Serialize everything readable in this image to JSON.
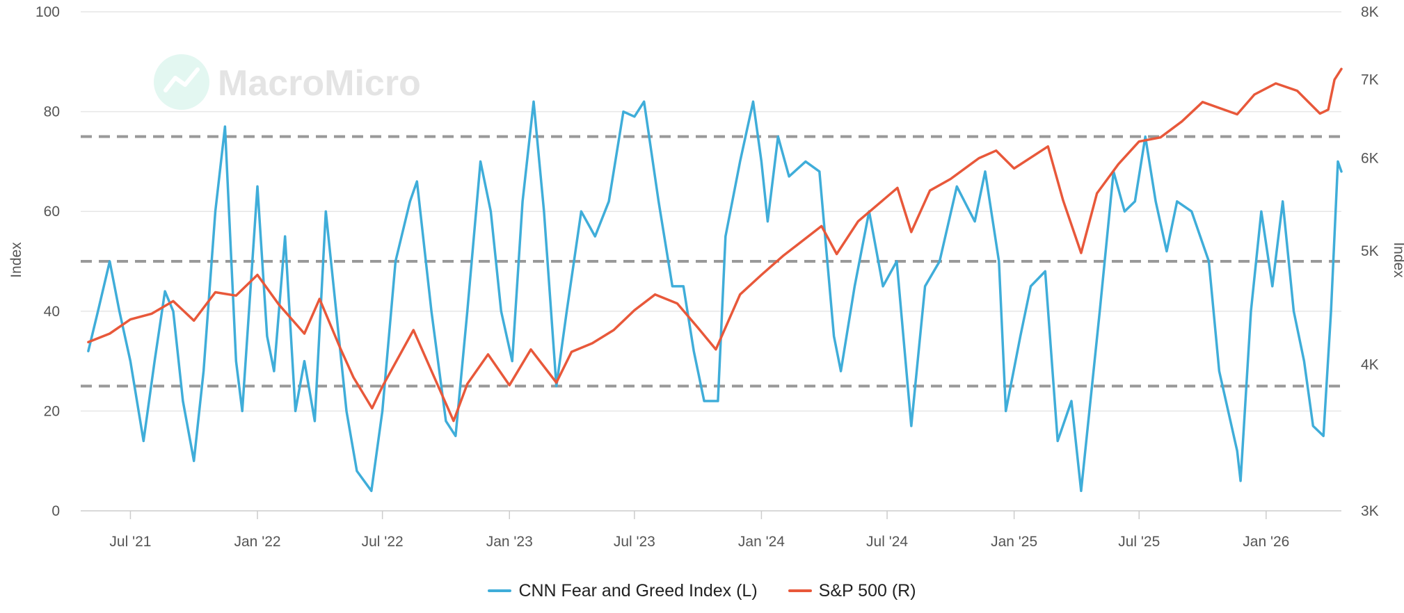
{
  "watermark": "MacroMicro",
  "chart_data": {
    "type": "line",
    "x_range": [
      "2021-04-20",
      "2026-04-20"
    ],
    "x_ticks": [
      {
        "date": "2021-07-01",
        "label": "Jul '21"
      },
      {
        "date": "2022-01-01",
        "label": "Jan '22"
      },
      {
        "date": "2022-07-01",
        "label": "Jul '22"
      },
      {
        "date": "2023-01-01",
        "label": "Jan '23"
      },
      {
        "date": "2023-07-01",
        "label": "Jul '23"
      },
      {
        "date": "2024-01-01",
        "label": "Jan '24"
      },
      {
        "date": "2024-07-01",
        "label": "Jul '24"
      },
      {
        "date": "2025-01-01",
        "label": "Jan '25"
      },
      {
        "date": "2025-07-01",
        "label": "Jul '25"
      },
      {
        "date": "2026-01-01",
        "label": "Jan '26"
      }
    ],
    "y_left": {
      "label": "Index",
      "ylim": [
        0,
        100
      ],
      "ticks": [
        {
          "v": 0,
          "label": "0"
        },
        {
          "v": 20,
          "label": "20"
        },
        {
          "v": 40,
          "label": "40"
        },
        {
          "v": 60,
          "label": "60"
        },
        {
          "v": 80,
          "label": "80"
        },
        {
          "v": 100,
          "label": "100"
        }
      ]
    },
    "y_right": {
      "label": "Index",
      "scale": "log",
      "ylim": [
        3000,
        8000
      ],
      "ticks": [
        {
          "v": 3000,
          "label": "3K"
        },
        {
          "v": 4000,
          "label": "4K"
        },
        {
          "v": 5000,
          "label": "5K"
        },
        {
          "v": 6000,
          "label": "6K"
        },
        {
          "v": 7000,
          "label": "7K"
        },
        {
          "v": 8000,
          "label": "8K"
        }
      ]
    },
    "reference_lines_left": [
      75,
      50,
      25
    ],
    "grid": true,
    "legend_position": "bottom-center",
    "series": [
      {
        "name": "CNN Fear and Greed Index (L)",
        "axis": "left",
        "color": "#3fadd9",
        "points": [
          [
            "2021-05-01",
            32
          ],
          [
            "2021-05-15",
            40
          ],
          [
            "2021-06-01",
            50
          ],
          [
            "2021-06-15",
            40
          ],
          [
            "2021-07-01",
            30
          ],
          [
            "2021-07-20",
            14
          ],
          [
            "2021-08-05",
            30
          ],
          [
            "2021-08-20",
            44
          ],
          [
            "2021-09-01",
            40
          ],
          [
            "2021-09-15",
            22
          ],
          [
            "2021-10-01",
            10
          ],
          [
            "2021-10-15",
            28
          ],
          [
            "2021-11-01",
            60
          ],
          [
            "2021-11-15",
            77
          ],
          [
            "2021-12-01",
            30
          ],
          [
            "2021-12-10",
            20
          ],
          [
            "2022-01-01",
            65
          ],
          [
            "2022-01-15",
            35
          ],
          [
            "2022-01-25",
            28
          ],
          [
            "2022-02-10",
            55
          ],
          [
            "2022-02-25",
            20
          ],
          [
            "2022-03-10",
            30
          ],
          [
            "2022-03-25",
            18
          ],
          [
            "2022-04-10",
            60
          ],
          [
            "2022-04-25",
            40
          ],
          [
            "2022-05-10",
            20
          ],
          [
            "2022-05-25",
            8
          ],
          [
            "2022-06-15",
            4
          ],
          [
            "2022-07-01",
            20
          ],
          [
            "2022-07-20",
            50
          ],
          [
            "2022-08-10",
            62
          ],
          [
            "2022-08-20",
            66
          ],
          [
            "2022-09-10",
            40
          ],
          [
            "2022-10-01",
            18
          ],
          [
            "2022-10-15",
            15
          ],
          [
            "2022-11-01",
            40
          ],
          [
            "2022-11-20",
            70
          ],
          [
            "2022-12-05",
            60
          ],
          [
            "2022-12-20",
            40
          ],
          [
            "2023-01-05",
            30
          ],
          [
            "2023-01-20",
            62
          ],
          [
            "2023-02-05",
            82
          ],
          [
            "2023-02-20",
            60
          ],
          [
            "2023-03-10",
            25
          ],
          [
            "2023-03-25",
            40
          ],
          [
            "2023-04-15",
            60
          ],
          [
            "2023-05-05",
            55
          ],
          [
            "2023-05-25",
            62
          ],
          [
            "2023-06-15",
            80
          ],
          [
            "2023-07-01",
            79
          ],
          [
            "2023-07-15",
            82
          ],
          [
            "2023-08-05",
            62
          ],
          [
            "2023-08-25",
            45
          ],
          [
            "2023-09-10",
            45
          ],
          [
            "2023-09-25",
            32
          ],
          [
            "2023-10-10",
            22
          ],
          [
            "2023-10-30",
            22
          ],
          [
            "2023-11-10",
            55
          ],
          [
            "2023-12-01",
            70
          ],
          [
            "2023-12-20",
            82
          ],
          [
            "2024-01-01",
            70
          ],
          [
            "2024-01-10",
            58
          ],
          [
            "2024-01-25",
            75
          ],
          [
            "2024-02-10",
            67
          ],
          [
            "2024-03-05",
            70
          ],
          [
            "2024-03-25",
            68
          ],
          [
            "2024-04-15",
            35
          ],
          [
            "2024-04-25",
            28
          ],
          [
            "2024-05-15",
            45
          ],
          [
            "2024-06-05",
            60
          ],
          [
            "2024-06-25",
            45
          ],
          [
            "2024-07-15",
            50
          ],
          [
            "2024-08-05",
            17
          ],
          [
            "2024-08-25",
            45
          ],
          [
            "2024-09-15",
            50
          ],
          [
            "2024-10-10",
            65
          ],
          [
            "2024-11-05",
            58
          ],
          [
            "2024-11-20",
            68
          ],
          [
            "2024-12-10",
            50
          ],
          [
            "2024-12-20",
            20
          ],
          [
            "2025-01-10",
            35
          ],
          [
            "2025-01-25",
            45
          ],
          [
            "2025-02-15",
            48
          ],
          [
            "2025-03-05",
            14
          ],
          [
            "2025-03-25",
            22
          ],
          [
            "2025-04-08",
            4
          ],
          [
            "2025-04-20",
            20
          ],
          [
            "2025-05-05",
            40
          ],
          [
            "2025-05-25",
            68
          ],
          [
            "2025-06-10",
            60
          ],
          [
            "2025-06-25",
            62
          ],
          [
            "2025-07-10",
            75
          ],
          [
            "2025-07-25",
            62
          ],
          [
            "2025-08-10",
            52
          ],
          [
            "2025-08-25",
            62
          ],
          [
            "2025-09-15",
            60
          ],
          [
            "2025-10-10",
            50
          ],
          [
            "2025-10-25",
            28
          ],
          [
            "2025-11-20",
            12
          ],
          [
            "2025-11-25",
            6
          ],
          [
            "2025-12-10",
            40
          ],
          [
            "2025-12-25",
            60
          ],
          [
            "2026-01-10",
            45
          ],
          [
            "2026-01-25",
            62
          ],
          [
            "2026-02-10",
            40
          ],
          [
            "2026-02-25",
            30
          ],
          [
            "2026-03-10",
            17
          ],
          [
            "2026-03-25",
            15
          ],
          [
            "2026-04-05",
            40
          ],
          [
            "2026-04-15",
            70
          ],
          [
            "2026-04-20",
            68
          ]
        ]
      },
      {
        "name": "S&P 500 (R)",
        "axis": "right",
        "color": "#e8583a",
        "points": [
          [
            "2021-05-01",
            4180
          ],
          [
            "2021-06-01",
            4250
          ],
          [
            "2021-07-01",
            4370
          ],
          [
            "2021-08-01",
            4420
          ],
          [
            "2021-09-01",
            4530
          ],
          [
            "2021-10-01",
            4360
          ],
          [
            "2021-11-01",
            4610
          ],
          [
            "2021-12-01",
            4580
          ],
          [
            "2022-01-01",
            4770
          ],
          [
            "2022-02-01",
            4500
          ],
          [
            "2022-03-10",
            4250
          ],
          [
            "2022-04-01",
            4550
          ],
          [
            "2022-05-01",
            4130
          ],
          [
            "2022-05-20",
            3900
          ],
          [
            "2022-06-16",
            3670
          ],
          [
            "2022-07-01",
            3830
          ],
          [
            "2022-08-15",
            4280
          ],
          [
            "2022-09-10",
            3950
          ],
          [
            "2022-10-12",
            3580
          ],
          [
            "2022-11-01",
            3850
          ],
          [
            "2022-12-01",
            4080
          ],
          [
            "2023-01-01",
            3840
          ],
          [
            "2023-02-01",
            4120
          ],
          [
            "2023-03-10",
            3860
          ],
          [
            "2023-04-01",
            4100
          ],
          [
            "2023-05-01",
            4170
          ],
          [
            "2023-06-01",
            4280
          ],
          [
            "2023-07-01",
            4450
          ],
          [
            "2023-07-31",
            4590
          ],
          [
            "2023-09-01",
            4510
          ],
          [
            "2023-10-01",
            4300
          ],
          [
            "2023-10-27",
            4120
          ],
          [
            "2023-12-01",
            4590
          ],
          [
            "2024-01-01",
            4770
          ],
          [
            "2024-02-01",
            4950
          ],
          [
            "2024-03-28",
            5250
          ],
          [
            "2024-04-19",
            4970
          ],
          [
            "2024-05-20",
            5300
          ],
          [
            "2024-07-16",
            5660
          ],
          [
            "2024-08-05",
            5190
          ],
          [
            "2024-09-01",
            5630
          ],
          [
            "2024-10-01",
            5760
          ],
          [
            "2024-11-11",
            6000
          ],
          [
            "2024-12-06",
            6090
          ],
          [
            "2025-01-01",
            5880
          ],
          [
            "2025-02-19",
            6140
          ],
          [
            "2025-03-13",
            5520
          ],
          [
            "2025-04-08",
            4980
          ],
          [
            "2025-05-01",
            5600
          ],
          [
            "2025-06-01",
            5930
          ],
          [
            "2025-07-01",
            6200
          ],
          [
            "2025-08-01",
            6250
          ],
          [
            "2025-09-01",
            6450
          ],
          [
            "2025-10-01",
            6700
          ],
          [
            "2025-11-20",
            6540
          ],
          [
            "2025-12-15",
            6800
          ],
          [
            "2026-01-15",
            6950
          ],
          [
            "2026-02-15",
            6850
          ],
          [
            "2026-03-20",
            6550
          ],
          [
            "2026-04-01",
            6600
          ],
          [
            "2026-04-10",
            7000
          ],
          [
            "2026-04-20",
            7150
          ]
        ]
      }
    ]
  }
}
